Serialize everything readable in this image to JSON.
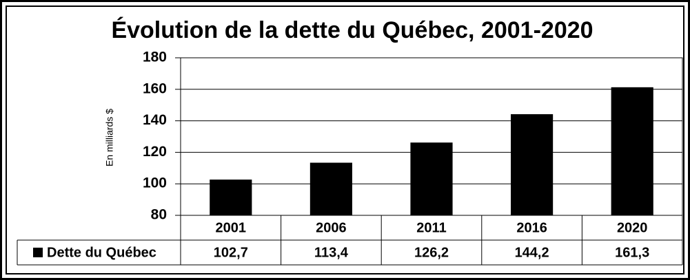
{
  "chart_data": {
    "type": "bar",
    "title": "Évolution de la dette du Québec, 2001-2020",
    "y_label": "En milliards $",
    "categories": [
      "2001",
      "2006",
      "2011",
      "2016",
      "2020"
    ],
    "series": [
      {
        "name": "Dette du Québec",
        "color": "#000000",
        "values": [
          102.7,
          113.4,
          126.2,
          144.2,
          161.3
        ],
        "value_labels": [
          "102,7",
          "113,4",
          "126,2",
          "144,2",
          "161,3"
        ]
      }
    ],
    "ylim": [
      80,
      180
    ],
    "yticks": [
      80,
      100,
      120,
      140,
      160,
      180
    ],
    "grid": true,
    "data_table": true
  }
}
